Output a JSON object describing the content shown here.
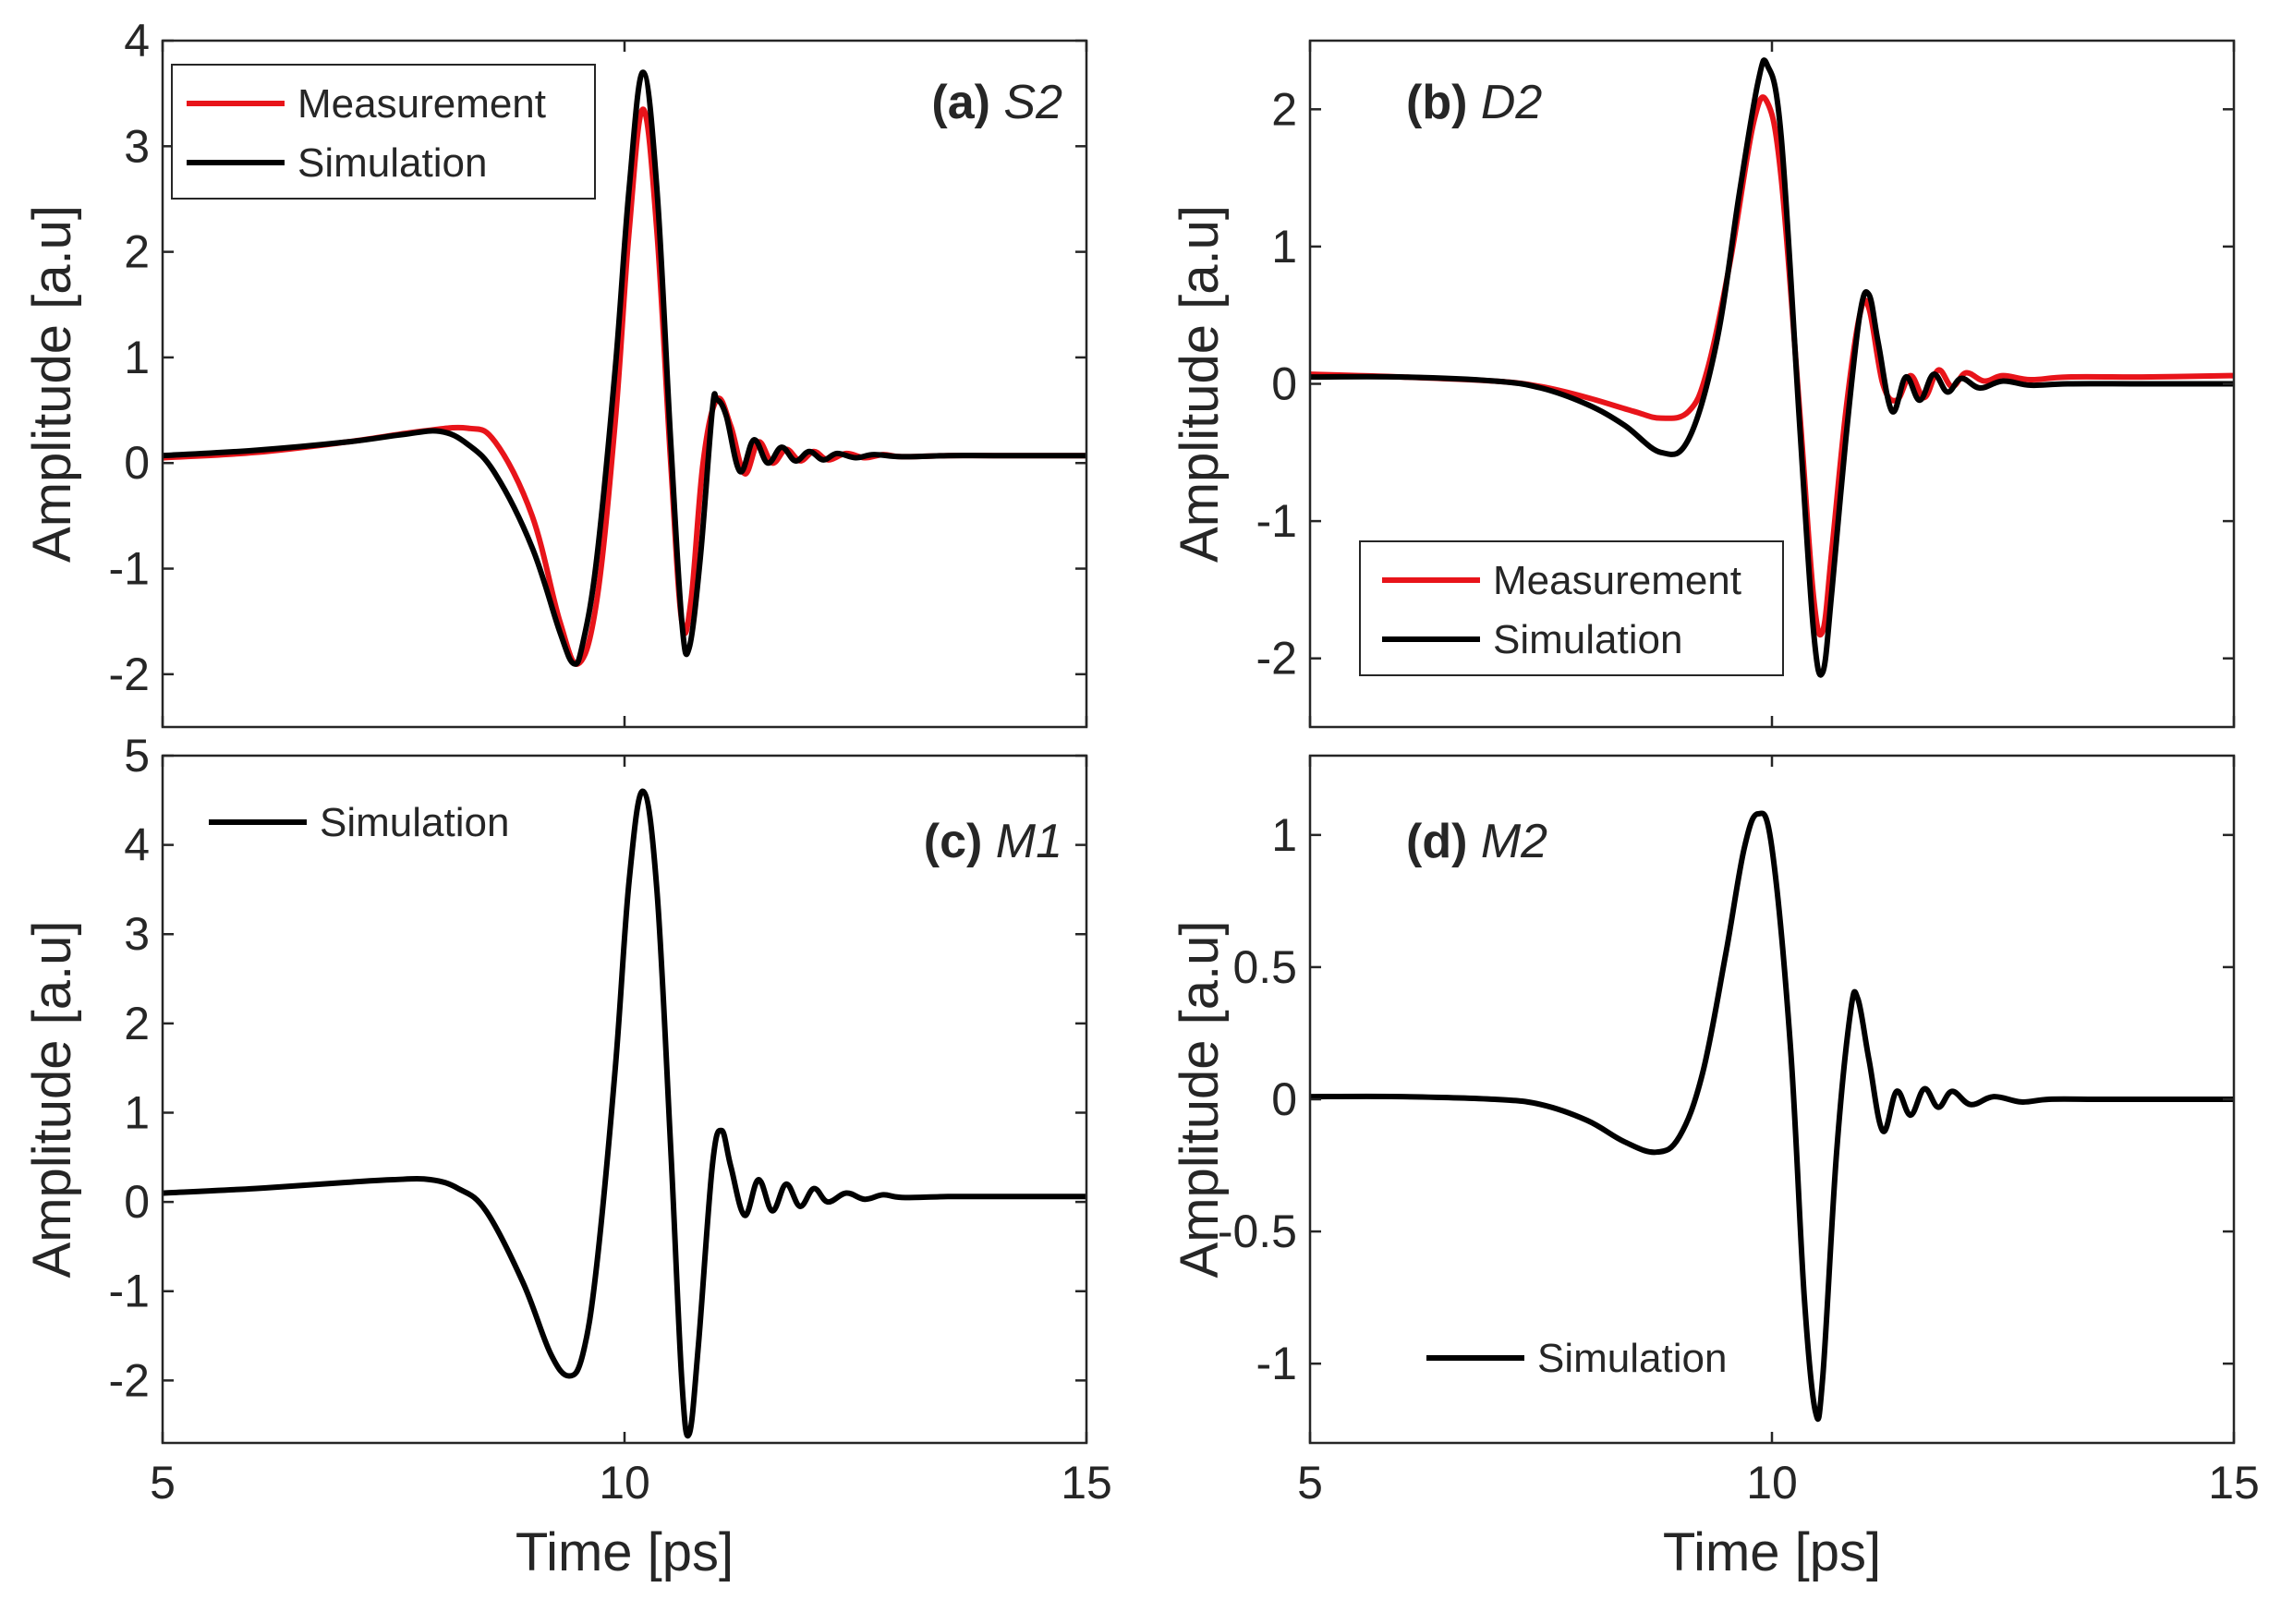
{
  "figure": {
    "xlabel": "Time [ps]",
    "ylabel": "Amplitude [a.u]"
  },
  "chart_data": [
    {
      "type": "line",
      "panel_letter": "(a)",
      "panel_name": "S2",
      "xlabel": "",
      "ylabel": "Amplitude [a.u]",
      "xlim": [
        5,
        15
      ],
      "ylim": [
        -2.5,
        4
      ],
      "xticks": [
        "5",
        "10",
        "15"
      ],
      "yticks": [
        "-2",
        "-1",
        "0",
        "1",
        "2",
        "3",
        "4"
      ],
      "legend_position": "top-left",
      "series": [
        {
          "name": "Measurement",
          "color": "#e8141a",
          "x": [
            5,
            6,
            7,
            7.8,
            8.3,
            8.6,
            9.0,
            9.3,
            9.5,
            9.7,
            9.9,
            10.05,
            10.2,
            10.35,
            10.5,
            10.62,
            10.72,
            10.85,
            11.0,
            11.15,
            11.3,
            11.45,
            11.6,
            11.75,
            11.9,
            12.05,
            12.2,
            12.4,
            12.6,
            12.8,
            13.0,
            13.5,
            14.0,
            15
          ],
          "y": [
            0.05,
            0.1,
            0.2,
            0.3,
            0.33,
            0.2,
            -0.5,
            -1.5,
            -1.9,
            -1.3,
            0.4,
            2.2,
            3.35,
            2.2,
            0.0,
            -1.5,
            -1.3,
            0.0,
            0.6,
            0.35,
            -0.1,
            0.2,
            0.0,
            0.13,
            0.02,
            0.11,
            0.03,
            0.09,
            0.05,
            0.08,
            0.06,
            0.07,
            0.07,
            0.07
          ]
        },
        {
          "name": "Simulation",
          "color": "#000000",
          "x": [
            5,
            6,
            7,
            7.6,
            8.0,
            8.3,
            8.6,
            9.0,
            9.3,
            9.45,
            9.55,
            9.7,
            9.9,
            10.05,
            10.2,
            10.35,
            10.5,
            10.62,
            10.7,
            10.82,
            10.95,
            11.0,
            11.1,
            11.25,
            11.4,
            11.55,
            11.7,
            11.85,
            12.0,
            12.15,
            12.3,
            12.5,
            12.7,
            13.0,
            13.5,
            14.0,
            15
          ],
          "y": [
            0.07,
            0.12,
            0.2,
            0.27,
            0.3,
            0.18,
            -0.1,
            -0.8,
            -1.6,
            -1.9,
            -1.7,
            -0.9,
            0.9,
            2.6,
            3.7,
            2.6,
            0.2,
            -1.5,
            -1.75,
            -0.9,
            0.5,
            0.6,
            0.45,
            -0.08,
            0.22,
            0.0,
            0.15,
            0.02,
            0.11,
            0.03,
            0.09,
            0.05,
            0.08,
            0.06,
            0.07,
            0.07,
            0.07
          ]
        }
      ]
    },
    {
      "type": "line",
      "panel_letter": "(b)",
      "panel_name": "D2",
      "xlabel": "",
      "ylabel": "Amplitude [a.u]",
      "xlim": [
        5,
        15
      ],
      "ylim": [
        -2.5,
        2.5
      ],
      "xticks": [
        "5",
        "10",
        "15"
      ],
      "yticks": [
        "-2",
        "-1",
        "0",
        "1",
        "2"
      ],
      "legend_position": "bottom-left",
      "series": [
        {
          "name": "Measurement",
          "color": "#e8141a",
          "x": [
            5,
            6,
            7,
            7.5,
            8.0,
            8.5,
            8.8,
            9.1,
            9.3,
            9.55,
            9.8,
            9.95,
            10.1,
            10.3,
            10.45,
            10.55,
            10.65,
            10.8,
            10.95,
            11.05,
            11.2,
            11.35,
            11.5,
            11.65,
            11.8,
            11.95,
            12.1,
            12.3,
            12.5,
            12.8,
            13.2,
            14.0,
            15
          ],
          "y": [
            0.07,
            0.05,
            0.02,
            -0.02,
            -0.1,
            -0.2,
            -0.25,
            -0.2,
            0.1,
            0.9,
            1.9,
            2.05,
            1.5,
            -0.2,
            -1.55,
            -1.8,
            -1.2,
            -0.2,
            0.5,
            0.55,
            0.0,
            -0.12,
            0.06,
            -0.1,
            0.1,
            -0.02,
            0.08,
            0.02,
            0.06,
            0.03,
            0.05,
            0.05,
            0.06
          ]
        },
        {
          "name": "Simulation",
          "color": "#000000",
          "x": [
            5,
            6,
            7,
            7.5,
            8.0,
            8.4,
            8.8,
            9.1,
            9.4,
            9.65,
            9.85,
            9.95,
            10.1,
            10.3,
            10.45,
            10.55,
            10.65,
            10.8,
            10.95,
            11.05,
            11.15,
            11.3,
            11.45,
            11.6,
            11.75,
            11.9,
            12.05,
            12.25,
            12.5,
            12.8,
            13.2,
            14.0,
            15
          ],
          "y": [
            0.05,
            0.05,
            0.02,
            -0.03,
            -0.15,
            -0.3,
            -0.5,
            -0.4,
            0.3,
            1.4,
            2.2,
            2.32,
            1.8,
            -0.3,
            -1.8,
            -2.1,
            -1.5,
            -0.4,
            0.5,
            0.65,
            0.3,
            -0.2,
            0.05,
            -0.12,
            0.07,
            -0.06,
            0.04,
            -0.03,
            0.02,
            -0.01,
            0.0,
            0.0,
            0.0
          ]
        }
      ]
    },
    {
      "type": "line",
      "panel_letter": "(c)",
      "panel_name": "M1",
      "xlabel": "Time [ps]",
      "ylabel": "Amplitude [a.u]",
      "xlim": [
        5,
        15
      ],
      "ylim": [
        -2.7,
        5
      ],
      "xticks": [
        "5",
        "10",
        "15"
      ],
      "yticks": [
        "-2",
        "-1",
        "0",
        "1",
        "2",
        "3",
        "4",
        "5"
      ],
      "legend_position": "top-left",
      "series": [
        {
          "name": "Simulation",
          "color": "#000000",
          "x": [
            5,
            6,
            7,
            7.5,
            7.9,
            8.2,
            8.5,
            8.9,
            9.2,
            9.4,
            9.55,
            9.7,
            9.9,
            10.05,
            10.2,
            10.35,
            10.5,
            10.62,
            10.7,
            10.8,
            10.95,
            11.05,
            11.15,
            11.3,
            11.45,
            11.6,
            11.75,
            11.9,
            12.05,
            12.2,
            12.4,
            12.6,
            12.8,
            13.0,
            13.5,
            14.0,
            15
          ],
          "y": [
            0.1,
            0.15,
            0.22,
            0.25,
            0.25,
            0.15,
            -0.1,
            -0.9,
            -1.7,
            -1.95,
            -1.7,
            -0.7,
            1.5,
            3.6,
            4.6,
            3.5,
            0.6,
            -2.0,
            -2.6,
            -1.6,
            0.4,
            0.8,
            0.4,
            -0.15,
            0.25,
            -0.1,
            0.2,
            -0.05,
            0.15,
            0.0,
            0.1,
            0.03,
            0.08,
            0.05,
            0.06,
            0.06,
            0.06
          ]
        }
      ]
    },
    {
      "type": "line",
      "panel_letter": "(d)",
      "panel_name": "M2",
      "xlabel": "Time [ps]",
      "ylabel": "Amplitude [a.u]",
      "xlim": [
        5,
        15
      ],
      "ylim": [
        -1.3,
        1.3
      ],
      "xticks": [
        "5",
        "10",
        "15"
      ],
      "yticks": [
        "-1",
        "-0.5",
        "0",
        "0.5",
        "1"
      ],
      "legend_position": "bottom-left",
      "series": [
        {
          "name": "Simulation",
          "color": "#000000",
          "x": [
            5,
            6,
            7,
            7.5,
            8.0,
            8.4,
            8.75,
            9.0,
            9.25,
            9.5,
            9.7,
            9.85,
            10.0,
            10.2,
            10.35,
            10.47,
            10.55,
            10.7,
            10.85,
            10.93,
            11.05,
            11.2,
            11.35,
            11.5,
            11.65,
            11.8,
            11.95,
            12.15,
            12.4,
            12.7,
            13.0,
            13.5,
            14.0,
            15
          ],
          "y": [
            0.01,
            0.01,
            0.0,
            -0.02,
            -0.08,
            -0.16,
            -0.2,
            -0.14,
            0.1,
            0.55,
            0.95,
            1.08,
            0.95,
            0.2,
            -0.75,
            -1.18,
            -1.05,
            -0.2,
            0.33,
            0.38,
            0.15,
            -0.12,
            0.03,
            -0.06,
            0.04,
            -0.03,
            0.03,
            -0.02,
            0.01,
            -0.01,
            0.0,
            0.0,
            0.0,
            0.0
          ]
        }
      ]
    }
  ]
}
